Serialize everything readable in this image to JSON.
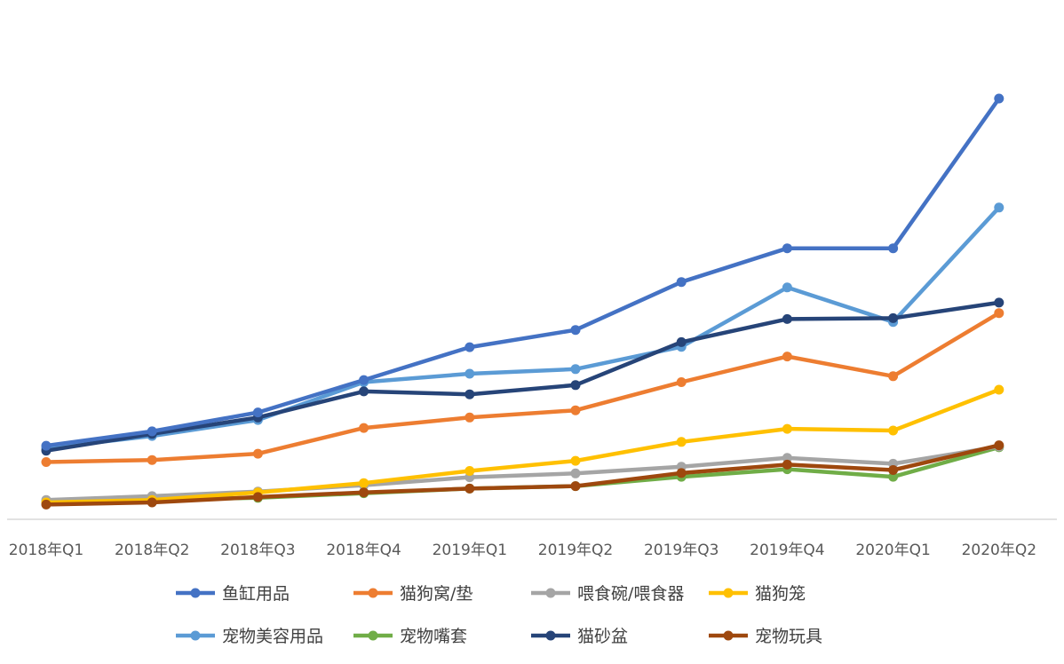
{
  "chart_data": {
    "type": "line",
    "title": "",
    "xlabel": "",
    "ylabel": "",
    "x": [
      "2018年Q1",
      "2018年Q2",
      "2018年Q3",
      "2018年Q4",
      "2019年Q1",
      "2019年Q2",
      "2019年Q3",
      "2019年Q4",
      "2020年Q1",
      "2020年Q2"
    ],
    "ylim": [
      0,
      100
    ],
    "grid": false,
    "legend": "bottom",
    "series": [
      {
        "name": "鱼缸用品",
        "color": "#4472C4",
        "values": [
          17.5,
          20.9,
          25.4,
          33.1,
          40.9,
          45.0,
          56.4,
          64.4,
          64.4,
          100.0
        ]
      },
      {
        "name": "猫狗窝/垫",
        "color": "#ED7D31",
        "values": [
          13.6,
          14.1,
          15.6,
          21.7,
          24.2,
          25.9,
          32.6,
          38.7,
          34.0,
          49.0
        ]
      },
      {
        "name": "喂食碗/喂食器",
        "color": "#A5A5A5",
        "values": [
          4.6,
          5.5,
          6.6,
          8.1,
          10.0,
          10.9,
          12.5,
          14.6,
          13.2,
          17.3
        ]
      },
      {
        "name": "猫狗笼",
        "color": "#FFC000",
        "values": [
          4.0,
          4.6,
          6.4,
          8.6,
          11.5,
          13.9,
          18.4,
          21.5,
          21.1,
          30.8
        ]
      },
      {
        "name": "宠物美容用品",
        "color": "#5B9BD5",
        "values": [
          16.9,
          19.8,
          23.6,
          32.6,
          34.6,
          35.7,
          41.0,
          55.1,
          46.9,
          74.1
        ]
      },
      {
        "name": "宠物嘴套",
        "color": "#70AD47",
        "values": [
          4.2,
          4.6,
          5.1,
          6.2,
          7.3,
          7.9,
          10.1,
          11.9,
          10.1,
          17.1
        ]
      },
      {
        "name": "猫砂盆",
        "color": "#264478",
        "values": [
          16.3,
          20.3,
          24.2,
          30.4,
          29.7,
          31.9,
          42.1,
          47.6,
          47.8,
          51.5
        ]
      },
      {
        "name": "宠物玩具",
        "color": "#9E480E",
        "values": [
          3.5,
          4.0,
          5.3,
          6.4,
          7.3,
          7.9,
          11.0,
          13.0,
          11.7,
          17.6
        ]
      }
    ]
  }
}
